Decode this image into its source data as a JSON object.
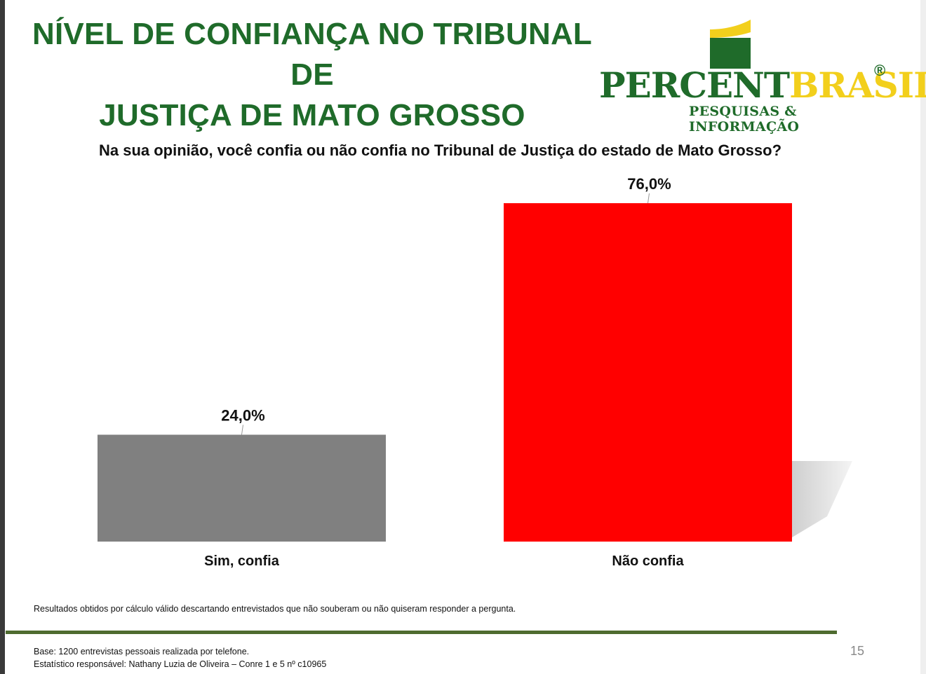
{
  "title_line1": "NÍVEL DE CONFIANÇA NO TRIBUNAL DE",
  "title_line2": "JUSTIÇA DE MATO GROSSO",
  "logo": {
    "word_green": "PERCENT",
    "word_yellow": "BRASIL",
    "registered": "®",
    "subtitle": "PESQUISAS & INFORMAÇÃO"
  },
  "question": "Na sua opinião, você confia ou não confia no Tribunal de Justiça do estado de Mato Grosso?",
  "chart_data": {
    "type": "bar",
    "categories": [
      "Sim, confia",
      "Não confia"
    ],
    "values": [
      24.0,
      76.0
    ],
    "value_labels": [
      "24,0%",
      "76,0%"
    ],
    "colors": [
      "#808080",
      "#ff0000"
    ],
    "ylim": [
      0,
      76
    ],
    "grid": false,
    "title": "",
    "xlabel": "",
    "ylabel": ""
  },
  "footer": {
    "note": "Resultados obtidos por cálculo válido descartando entrevistados que não souberam ou não quiseram responder a pergunta.",
    "base_line1": "Base: 1200 entrevistas pessoais realizada por telefone.",
    "base_line2": "Estatístico responsável: Nathany Luzia de Oliveira – Conre 1 e 5 nº c10965",
    "page_number": "15"
  }
}
